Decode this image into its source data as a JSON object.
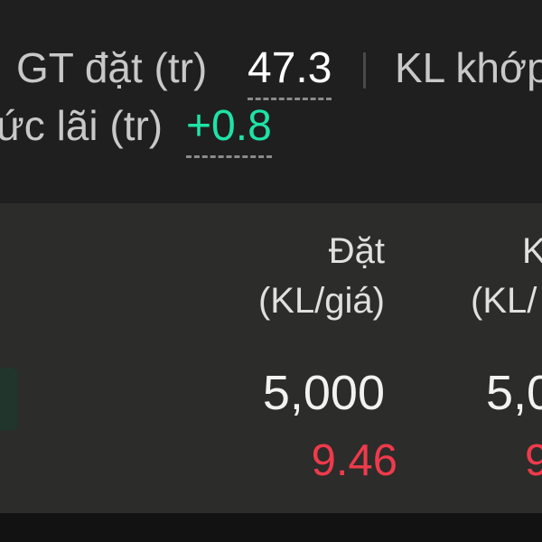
{
  "summary": {
    "order_value_label": "GT đặt (tr)",
    "order_value": "47.3",
    "matched_volume_label": "KL khớp",
    "est_profit_label": "ức lãi (tr)",
    "est_profit": "+0.8"
  },
  "table": {
    "columns": [
      {
        "title": "Đặt",
        "subtitle": "(KL/giá)"
      },
      {
        "title": "K",
        "subtitle": "(KL/"
      }
    ],
    "rows": [
      {
        "cells": [
          {
            "volume": "5,000",
            "price": "9.46"
          },
          {
            "volume": "5,0",
            "price": "9"
          }
        ]
      }
    ]
  },
  "colors": {
    "profit_positive": "#1ee3a6",
    "price_down": "#ef3a4b",
    "background": "#1f1f1f",
    "panel": "#2c2c2a"
  }
}
